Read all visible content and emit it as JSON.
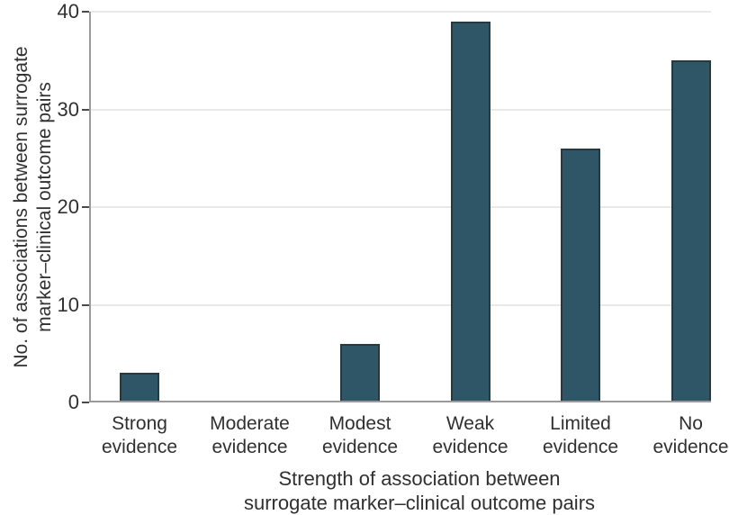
{
  "chart_data": {
    "type": "bar",
    "categories": [
      "Strong evidence",
      "Moderate evidence",
      "Modest evidence",
      "Weak evidence",
      "Limited evidence",
      "No evidence"
    ],
    "category_lines": [
      [
        "Strong",
        "evidence"
      ],
      [
        "Moderate",
        "evidence"
      ],
      [
        "Modest",
        "evidence"
      ],
      [
        "Weak",
        "evidence"
      ],
      [
        "Limited",
        "evidence"
      ],
      [
        "No",
        "evidence"
      ]
    ],
    "values": [
      3,
      0,
      6,
      39,
      26,
      35
    ],
    "title": "",
    "xlabel": "Strength of association between surrogate marker–clinical outcome pairs",
    "xlabel_lines": [
      "Strength of association between",
      "surrogate marker–clinical outcome pairs"
    ],
    "ylabel": "No. of associations between surrogate marker–clinical outcome pairs",
    "ylabel_lines": [
      "No. of associations between surrogate",
      "marker–clinical outcome pairs"
    ],
    "yticks": [
      0,
      10,
      20,
      30,
      40
    ],
    "ylim": [
      0,
      40
    ],
    "grid": "horizontal",
    "legend": "none",
    "colors": {
      "bar_fill": "#2F5667",
      "bar_border": "#263840",
      "axis_line": "#9b9b9b",
      "tick": "#4a4a4a",
      "gridline": "#e9e9e7",
      "text": "#303030",
      "background": "#ffffff"
    }
  }
}
